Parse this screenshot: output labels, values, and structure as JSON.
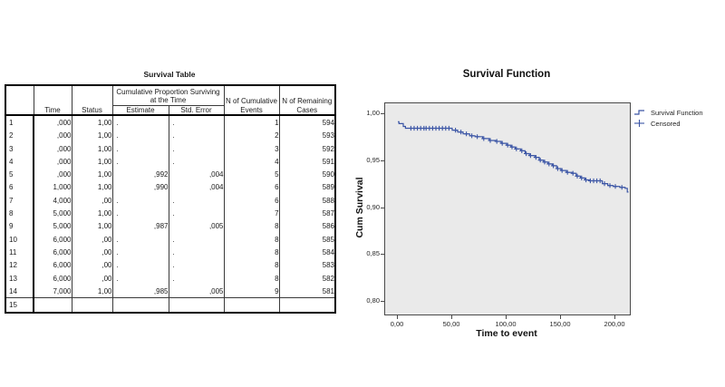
{
  "table": {
    "title": "Survival Table",
    "headers": {
      "row_number": "",
      "time": "Time",
      "status": "Status",
      "span_group": "Cumulative Proportion Surviving at the Time",
      "estimate": "Estimate",
      "std_error": "Std. Error",
      "n_cumulative_events": "N of Cumulative Events",
      "n_remaining_cases": "N of Remaining Cases"
    },
    "rows": [
      [
        "1",
        ",000",
        "1,00",
        ".",
        ".",
        "1",
        "594"
      ],
      [
        "2",
        ",000",
        "1,00",
        ".",
        ".",
        "2",
        "593"
      ],
      [
        "3",
        ",000",
        "1,00",
        ".",
        ".",
        "3",
        "592"
      ],
      [
        "4",
        ",000",
        "1,00",
        ".",
        ".",
        "4",
        "591"
      ],
      [
        "5",
        ",000",
        "1,00",
        ",992",
        ",004",
        "5",
        "590"
      ],
      [
        "6",
        "1,000",
        "1,00",
        ",990",
        ",004",
        "6",
        "589"
      ],
      [
        "7",
        "4,000",
        ",00",
        ".",
        ".",
        "6",
        "588"
      ],
      [
        "8",
        "5,000",
        "1,00",
        ".",
        ".",
        "7",
        "587"
      ],
      [
        "9",
        "5,000",
        "1,00",
        ",987",
        ",005",
        "8",
        "586"
      ],
      [
        "10",
        "6,000",
        ",00",
        ".",
        ".",
        "8",
        "585"
      ],
      [
        "11",
        "6,000",
        ",00",
        ".",
        ".",
        "8",
        "584"
      ],
      [
        "12",
        "6,000",
        ",00",
        ".",
        ".",
        "8",
        "583"
      ],
      [
        "13",
        "6,000",
        ",00",
        ".",
        ".",
        "8",
        "582"
      ],
      [
        "14",
        "7,000",
        "1,00",
        ",985",
        ",005",
        "9",
        "581"
      ]
    ],
    "clipped_next_row_number": "15"
  },
  "chart": {
    "title": "Survival Function",
    "xlabel": "Time to event",
    "ylabel": "Cum Survival",
    "legend": {
      "survival": "Survival Function",
      "censored": "Censored"
    }
  },
  "chart_data": {
    "type": "line",
    "subtype": "kaplan-meier-step",
    "title": "Survival Function",
    "xlabel": "Time to event",
    "ylabel": "Cum Survival",
    "xlim": [
      -11.7,
      213.3
    ],
    "ylim": [
      0.7865,
      1.0116
    ],
    "xticks": [
      0,
      50,
      100,
      150,
      200
    ],
    "xtick_labels": [
      "0,00",
      "50,00",
      "100,00",
      "150,00",
      "200,00"
    ],
    "yticks": [
      1.0,
      0.95,
      0.9,
      0.85,
      0.8
    ],
    "ytick_labels": [
      "1,00",
      "0,95",
      "0,90",
      "0,85",
      "0,80"
    ],
    "grid": false,
    "legend_position": "top-right-outside",
    "plot_bg": "#eaeaea",
    "line_color": "#3b55a5",
    "series": [
      {
        "name": "Survival Function",
        "type": "step",
        "points": [
          [
            0,
            0.992
          ],
          [
            1,
            0.99
          ],
          [
            5,
            0.987
          ],
          [
            7,
            0.985
          ],
          [
            50,
            0.983
          ],
          [
            55,
            0.981
          ],
          [
            60,
            0.979
          ],
          [
            66,
            0.977
          ],
          [
            71,
            0.976
          ],
          [
            78,
            0.974
          ],
          [
            84,
            0.972
          ],
          [
            90,
            0.971
          ],
          [
            95,
            0.969
          ],
          [
            100,
            0.967
          ],
          [
            104,
            0.965
          ],
          [
            108,
            0.963
          ],
          [
            113,
            0.961
          ],
          [
            117,
            0.958
          ],
          [
            121,
            0.956
          ],
          [
            126,
            0.954
          ],
          [
            130,
            0.951
          ],
          [
            134,
            0.949
          ],
          [
            138,
            0.947
          ],
          [
            142,
            0.945
          ],
          [
            146,
            0.942
          ],
          [
            150,
            0.94
          ],
          [
            155,
            0.938
          ],
          [
            160,
            0.937
          ],
          [
            164,
            0.934
          ],
          [
            168,
            0.932
          ],
          [
            172,
            0.93
          ],
          [
            176,
            0.929
          ],
          [
            188,
            0.926
          ],
          [
            193,
            0.924
          ],
          [
            198,
            0.923
          ],
          [
            204,
            0.922
          ],
          [
            209,
            0.921
          ],
          [
            211,
            0.917
          ]
        ]
      },
      {
        "name": "Censored",
        "type": "plus-markers",
        "x": [
          12,
          15,
          18,
          21,
          24,
          26,
          29,
          32,
          35,
          38,
          41,
          44,
          47,
          53,
          58,
          63,
          68,
          73,
          79,
          85,
          91,
          96,
          101,
          105,
          109,
          114,
          118,
          122,
          127,
          131,
          135,
          139,
          143,
          147,
          151,
          156,
          161,
          165,
          169,
          173,
          177,
          180,
          183,
          186,
          190,
          195,
          200,
          206
        ]
      }
    ]
  }
}
